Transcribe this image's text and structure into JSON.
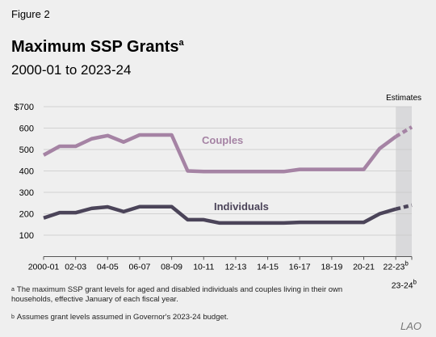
{
  "chart_data": {
    "type": "line",
    "figure_label": "Figure 2",
    "title": "Maximum SSP Grants",
    "title_note": "a",
    "subtitle": "2000-01 to 2023-24",
    "categories": [
      "2000-01",
      null,
      "02-03",
      null,
      "04-05",
      null,
      "06-07",
      null,
      "08-09",
      null,
      "10-11",
      null,
      "12-13",
      null,
      "14-15",
      null,
      "16-17",
      null,
      "18-19",
      null,
      "20-21",
      null,
      "22-23",
      "23-24"
    ],
    "series": [
      {
        "name": "Couples",
        "color": "#a583a4",
        "values": [
          474,
          515,
          515,
          550,
          565,
          535,
          568,
          568,
          568,
          400,
          397,
          397,
          397,
          397,
          397,
          397,
          407,
          407,
          407,
          407,
          407,
          505,
          560,
          605
        ]
      },
      {
        "name": "Individuals",
        "color": "#4b4459",
        "values": [
          180,
          205,
          205,
          225,
          232,
          210,
          233,
          233,
          233,
          172,
          172,
          157,
          157,
          157,
          157,
          157,
          160,
          160,
          160,
          160,
          160,
          200,
          222,
          240
        ]
      }
    ],
    "ylim": [
      0,
      700
    ],
    "yticks": [
      100,
      200,
      300,
      400,
      500,
      600,
      {
        "value": 700,
        "label": "$700"
      }
    ],
    "grid": true,
    "estimates": {
      "label": "Estimates",
      "from": "22-23",
      "to": "23-24",
      "note": "b"
    },
    "footnotes": [
      {
        "mark": "a",
        "text": "The maximum SSP grant levels for aged and disabled individuals and couples living in their own households, effective January of each fiscal year."
      },
      {
        "mark": "b",
        "text": "Assumes grant levels assumed in Governor's 2023-24 budget."
      }
    ],
    "source": "LAO"
  }
}
